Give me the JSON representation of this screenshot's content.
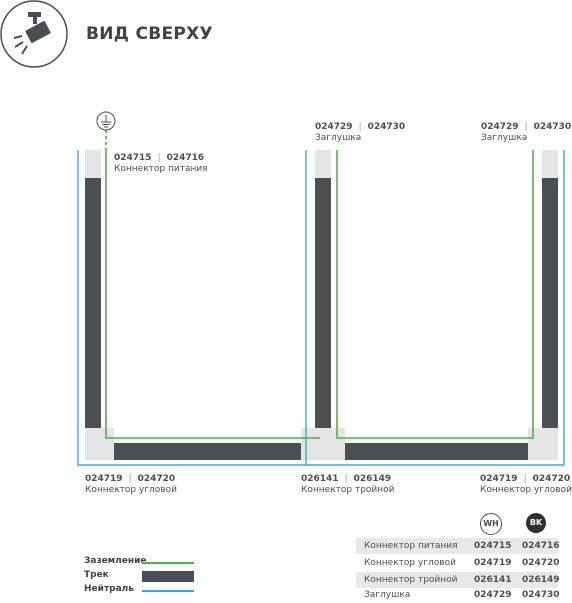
{
  "header": {
    "title": "ВИД СВЕРХУ",
    "icon": "spotlight-icon"
  },
  "colors": {
    "ground": "#4bb543",
    "track": "#4a4f54",
    "neutral": "#3aa8e0",
    "cap": "#e4e5e6"
  },
  "labels": {
    "power": {
      "code_wh": "024715",
      "code_bk": "024716",
      "name": "Коннектор питания"
    },
    "cap_left": {
      "code_wh": "024729",
      "code_bk": "024730",
      "name": "Заглушка"
    },
    "cap_right": {
      "code_wh": "024729",
      "code_bk": "024730",
      "name": "Заглушка"
    },
    "corner_left": {
      "code_wh": "024719",
      "code_bk": "024720",
      "name": "Коннектор угловой"
    },
    "tee": {
      "code_wh": "026141",
      "code_bk": "026149",
      "name": "Коннектор тройной"
    },
    "corner_right": {
      "code_wh": "024719",
      "code_bk": "024720",
      "name": "Коннектор угловой"
    }
  },
  "legend": [
    {
      "label": "Заземление",
      "kind": "ground"
    },
    {
      "label": "Трек",
      "kind": "track"
    },
    {
      "label": "Нейтраль",
      "kind": "neutral"
    }
  ],
  "table": {
    "columns": {
      "wh": "WH",
      "bk": "BK"
    },
    "rows": [
      {
        "name": "Коннектор питания",
        "wh": "024715",
        "bk": "024716"
      },
      {
        "name": "Коннектор угловой",
        "wh": "024719",
        "bk": "024720"
      },
      {
        "name": "Коннектор тройной",
        "wh": "026141",
        "bk": "026149"
      },
      {
        "name": "Заглушка",
        "wh": "024729",
        "bk": "024730"
      }
    ]
  }
}
